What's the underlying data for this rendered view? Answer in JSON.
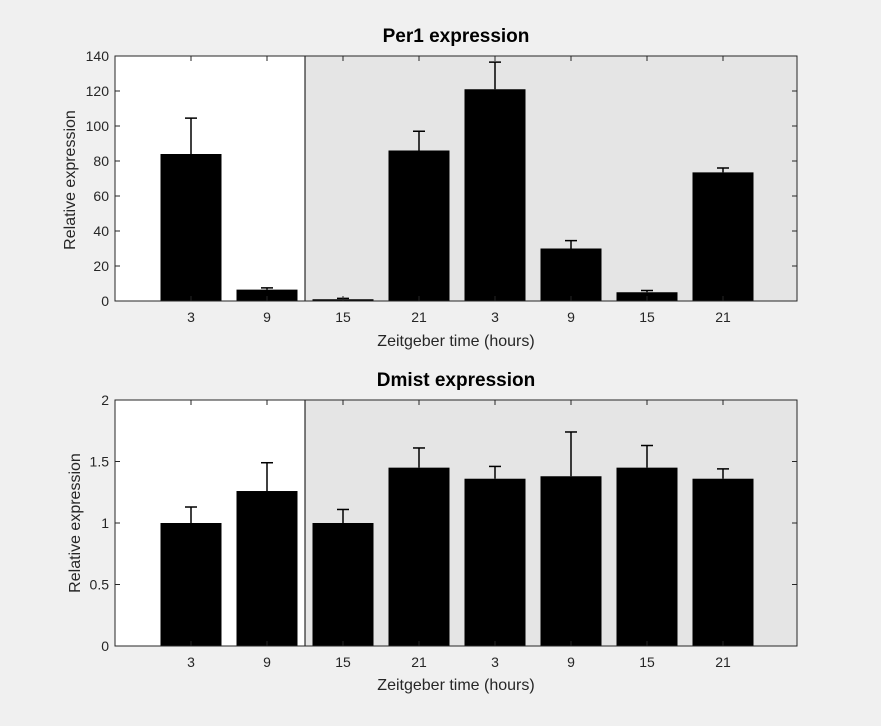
{
  "chart_data": [
    {
      "type": "bar",
      "title": "Per1 expression",
      "xlabel": "Zeitgeber time (hours)",
      "ylabel": "Relative expression",
      "categories": [
        "3",
        "9",
        "15",
        "21",
        "3",
        "9",
        "15",
        "21"
      ],
      "values": [
        84,
        6.5,
        1,
        86,
        121,
        30,
        5,
        73.5
      ],
      "error_upper": [
        20.5,
        1,
        0.5,
        11,
        15.5,
        4.5,
        1,
        2.5
      ],
      "ylim": [
        0,
        140
      ],
      "yticks": [
        0,
        20,
        40,
        60,
        80,
        100,
        120,
        140
      ],
      "ytick_labels": [
        "0",
        "20",
        "40",
        "60",
        "80",
        "100",
        "120",
        "140"
      ],
      "bar_color": "#000000",
      "background_regions": [
        {
          "from_index": 0,
          "to_index": 1,
          "color": "#ffffff"
        },
        {
          "from_index": 2,
          "to_index": 7,
          "color": "#e5e5e5"
        }
      ],
      "grid": false
    },
    {
      "type": "bar",
      "title": "Dmist expression",
      "xlabel": "Zeitgeber time (hours)",
      "ylabel": "Relative expression",
      "categories": [
        "3",
        "9",
        "15",
        "21",
        "3",
        "9",
        "15",
        "21"
      ],
      "values": [
        1.0,
        1.26,
        1.0,
        1.45,
        1.36,
        1.38,
        1.45,
        1.36
      ],
      "error_upper": [
        0.13,
        0.23,
        0.11,
        0.16,
        0.1,
        0.36,
        0.18,
        0.08
      ],
      "ylim": [
        0,
        2
      ],
      "yticks": [
        0,
        0.5,
        1,
        1.5,
        2
      ],
      "ytick_labels": [
        "0",
        "0.5",
        "1",
        "1.5",
        "2"
      ],
      "bar_color": "#000000",
      "background_regions": [
        {
          "from_index": 0,
          "to_index": 1,
          "color": "#ffffff"
        },
        {
          "from_index": 2,
          "to_index": 7,
          "color": "#e5e5e5"
        }
      ],
      "grid": false
    }
  ]
}
